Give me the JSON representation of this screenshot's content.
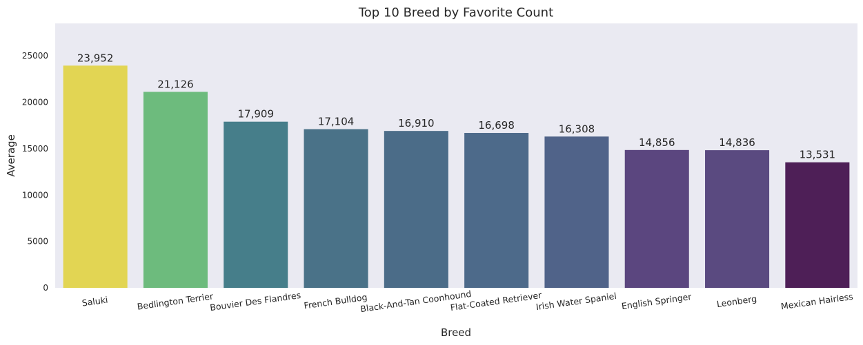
{
  "chart_data": {
    "type": "bar",
    "title": "Top 10 Breed by Favorite Count",
    "xlabel": "Breed",
    "ylabel": "Average",
    "ylim": [
      0,
      28500
    ],
    "yticks": [
      0,
      5000,
      10000,
      15000,
      20000,
      25000
    ],
    "grid": false,
    "background": "#EAEAF2",
    "categories": [
      "Saluki",
      "Bedlington Terrier",
      "Bouvier Des Flandres",
      "French Bulldog",
      "Black-And-Tan Coonhound",
      "Flat-Coated Retriever",
      "Irish Water Spaniel",
      "English Springer",
      "Leonberg",
      "Mexican Hairless"
    ],
    "values": [
      23952,
      21126,
      17909,
      17104,
      16910,
      16698,
      16308,
      14856,
      14836,
      13531
    ],
    "value_labels": [
      "23,952",
      "21,126",
      "17,909",
      "17,104",
      "16,910",
      "16,698",
      "16,308",
      "14,856",
      "14,836",
      "13,531"
    ],
    "colors": [
      "#E2D553",
      "#6DBB7D",
      "#467E8A",
      "#4A7288",
      "#4B6C88",
      "#4D6A8A",
      "#506389",
      "#5B467F",
      "#5A4A80",
      "#4E1F57"
    ]
  }
}
